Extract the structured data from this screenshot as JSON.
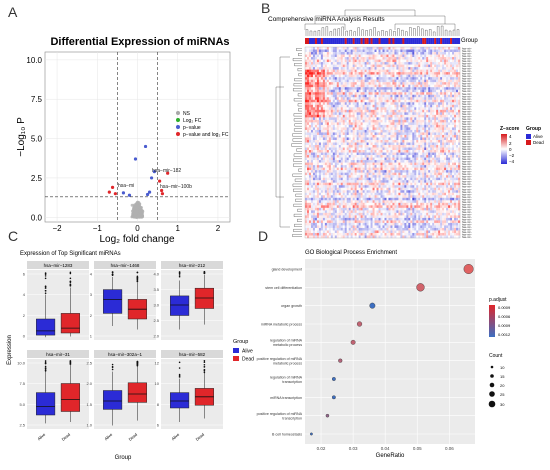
{
  "panels": {
    "A": {
      "letter": "A",
      "title": "Differential Expression of miRNAs",
      "xlabel": "Log₂ fold change",
      "ylabel": "−Log₁₀ P",
      "x_ticks": [
        "−2",
        "−1",
        "0",
        "1",
        "2"
      ],
      "y_ticks": [
        "0.0",
        "2.5",
        "5.0",
        "7.5",
        "10.0"
      ],
      "legend": [
        "NS",
        "Log₂ FC",
        "p−value",
        "p−value and log₂ FC"
      ],
      "labels": [
        "hsa−mir−182",
        "hsa−mi",
        "hsa−mir−100b"
      ]
    },
    "B": {
      "letter": "B",
      "title": "Comprehensive miRNA Analysis Results",
      "group_label": "Group",
      "legend_title_z": "Z−score",
      "legend_title_group": "Group",
      "z_ticks": [
        "4",
        "2",
        "0",
        "−2",
        "−4"
      ],
      "group_items": [
        "Alive",
        "Dead"
      ],
      "row_label_prefix": "hsa−mir−"
    },
    "C": {
      "letter": "C",
      "title": "Expression of Top Significant miRNAs",
      "ylabel": "Expression",
      "xlabel": "Group",
      "legend_title": "Group",
      "legend_items": [
        "Alive",
        "Dead"
      ],
      "facets": [
        {
          "name": "hsa−mir−1283",
          "ticks": [
            "0",
            "2",
            "4",
            "6"
          ]
        },
        {
          "name": "hsa−mir−1468",
          "ticks": [
            "1",
            "2",
            "3",
            "4"
          ]
        },
        {
          "name": "hsa−mir−212",
          "ticks": [
            "2.0",
            "2.5",
            "3.0",
            "3.5",
            "4.0"
          ]
        },
        {
          "name": "hsa−mir−31",
          "ticks": [
            "2.5",
            "5.0",
            "7.5",
            "10.0"
          ]
        },
        {
          "name": "hsa−mir−302a−1",
          "ticks": [
            "1.0",
            "1.5",
            "2.0",
            "2.5"
          ]
        },
        {
          "name": "hsa−mir−582",
          "ticks": [
            "6",
            "8",
            "10",
            "12"
          ]
        }
      ],
      "x_categories": [
        "Alive",
        "Dead"
      ]
    },
    "D": {
      "letter": "D",
      "title": "GO Biological Process Enrichment",
      "xlabel": "GeneRatio",
      "legend_padj_title": "p.adjust",
      "padj_ticks": [
        "0.0009",
        "0.0006",
        "0.0009",
        "0.0012"
      ],
      "legend_count_title": "Count",
      "count_ticks": [
        "10",
        "15",
        "20",
        "25",
        "30"
      ]
    }
  },
  "chart_data": [
    {
      "panel": "A",
      "type": "scatter",
      "title": "Differential Expression of miRNAs",
      "xlim": [
        -2.3,
        2.3
      ],
      "ylim": [
        -0.3,
        10.5
      ],
      "thresholds": {
        "x": [
          -0.5,
          0.5
        ],
        "y": 1.3
      },
      "points": [
        {
          "x": 0.2,
          "y": 4.5,
          "cls": "p"
        },
        {
          "x": -0.05,
          "y": 3.7,
          "cls": "p"
        },
        {
          "x": 0.75,
          "y": 2.8,
          "cls": "both"
        },
        {
          "x": 0.55,
          "y": 2.3,
          "cls": "both"
        },
        {
          "x": 0.42,
          "y": 2.9,
          "cls": "p"
        },
        {
          "x": 0.35,
          "y": 2.5,
          "cls": "p"
        },
        {
          "x": -0.62,
          "y": 1.9,
          "cls": "both"
        },
        {
          "x": -0.7,
          "y": 1.6,
          "cls": "both"
        },
        {
          "x": -0.55,
          "y": 1.5,
          "cls": "both"
        },
        {
          "x": 0.62,
          "y": 1.5,
          "cls": "both"
        },
        {
          "x": 0.6,
          "y": 1.7,
          "cls": "both"
        },
        {
          "x": 0.3,
          "y": 1.6,
          "cls": "p"
        },
        {
          "x": -0.35,
          "y": 1.55,
          "cls": "p"
        },
        {
          "x": 0.25,
          "y": 1.45,
          "cls": "p"
        },
        {
          "x": -0.2,
          "y": 1.4,
          "cls": "p"
        }
      ]
    },
    {
      "panel": "C",
      "type": "box",
      "series": [
        {
          "name": "Alive",
          "color": "#2b2bd6"
        },
        {
          "name": "Dead",
          "color": "#e0262a"
        }
      ]
    },
    {
      "panel": "D",
      "type": "scatter",
      "title": "GO Biological Process Enrichment",
      "xlabel": "GeneRatio",
      "xlim": [
        0.015,
        0.068
      ],
      "x_ticks": [
        0.02,
        0.03,
        0.04,
        0.05,
        0.06
      ],
      "terms": [
        {
          "term": "gland development",
          "ratio": 0.066,
          "count": 29,
          "padj": 0.0001
        },
        {
          "term": "stem cell differentiation",
          "ratio": 0.051,
          "count": 24,
          "padj": 0.0002
        },
        {
          "term": "organ growth",
          "ratio": 0.036,
          "count": 17,
          "padj": 0.0012
        },
        {
          "term": "miRNA metabolic process",
          "ratio": 0.032,
          "count": 15,
          "padj": 0.0003
        },
        {
          "term": "regulation of miRNA\nmetabolic process",
          "ratio": 0.03,
          "count": 14,
          "padj": 0.0003
        },
        {
          "term": "positive regulation of miRNA\nmetabolic process",
          "ratio": 0.026,
          "count": 12,
          "padj": 0.0004
        },
        {
          "term": "regulation of miRNA\ntranscription",
          "ratio": 0.024,
          "count": 11,
          "padj": 0.0012
        },
        {
          "term": "miRNA transcription",
          "ratio": 0.024,
          "count": 11,
          "padj": 0.0012
        },
        {
          "term": "positive regulation of miRNA\ntranscription",
          "ratio": 0.022,
          "count": 10,
          "padj": 0.0006
        },
        {
          "term": "B cell homeostasis",
          "ratio": 0.017,
          "count": 8,
          "padj": 0.0012
        }
      ]
    }
  ]
}
